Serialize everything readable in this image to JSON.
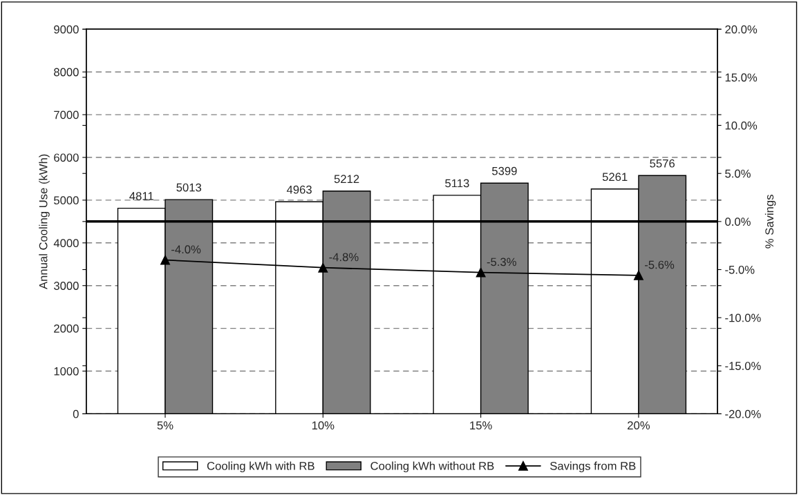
{
  "chart_data": {
    "type": "bar",
    "ylabel": "Annual Cooling Use (kWh)",
    "y2label": "% Savings",
    "categories": [
      "5%",
      "10%",
      "15%",
      "20%"
    ],
    "series": [
      {
        "name": "Cooling kWh with RB",
        "color": "#ffffff",
        "values": [
          4811,
          4963,
          5113,
          5261
        ],
        "value_labels": [
          "4811",
          "4963",
          "5113",
          "5261"
        ]
      },
      {
        "name": "Cooling kWh without RB",
        "color": "#808080",
        "values": [
          5013,
          5212,
          5399,
          5576
        ],
        "value_labels": [
          "5013",
          "5212",
          "5399",
          "5576"
        ]
      },
      {
        "name": "Savings from RB",
        "type": "line",
        "axis": "y2",
        "color": "#000000",
        "marker": "triangle",
        "values": [
          -4.0,
          -4.8,
          -5.3,
          -5.6
        ],
        "value_labels": [
          "-4.0%",
          "-4.8%",
          "-5.3%",
          "-5.6%"
        ]
      }
    ],
    "ylim": [
      0,
      9000
    ],
    "yticks": [
      0,
      1000,
      2000,
      3000,
      4000,
      5000,
      6000,
      7000,
      8000,
      9000
    ],
    "y2lim": [
      -20,
      20
    ],
    "y2ticks": [
      {
        "value": -20,
        "label": "-20.0%"
      },
      {
        "value": -15,
        "label": "-15.0%"
      },
      {
        "value": -10,
        "label": "-10.0%"
      },
      {
        "value": -5,
        "label": "-5.0%"
      },
      {
        "value": 0,
        "label": "0.0%"
      },
      {
        "value": 5,
        "label": "5.0%"
      },
      {
        "value": 10,
        "label": "10.0%"
      },
      {
        "value": 15,
        "label": "15.0%"
      },
      {
        "value": 20,
        "label": "20.0%"
      }
    ],
    "ref_lines": [
      {
        "axis": "y2",
        "value": 0,
        "color": "#000000"
      }
    ],
    "grid": "y",
    "legend": "bottom"
  }
}
